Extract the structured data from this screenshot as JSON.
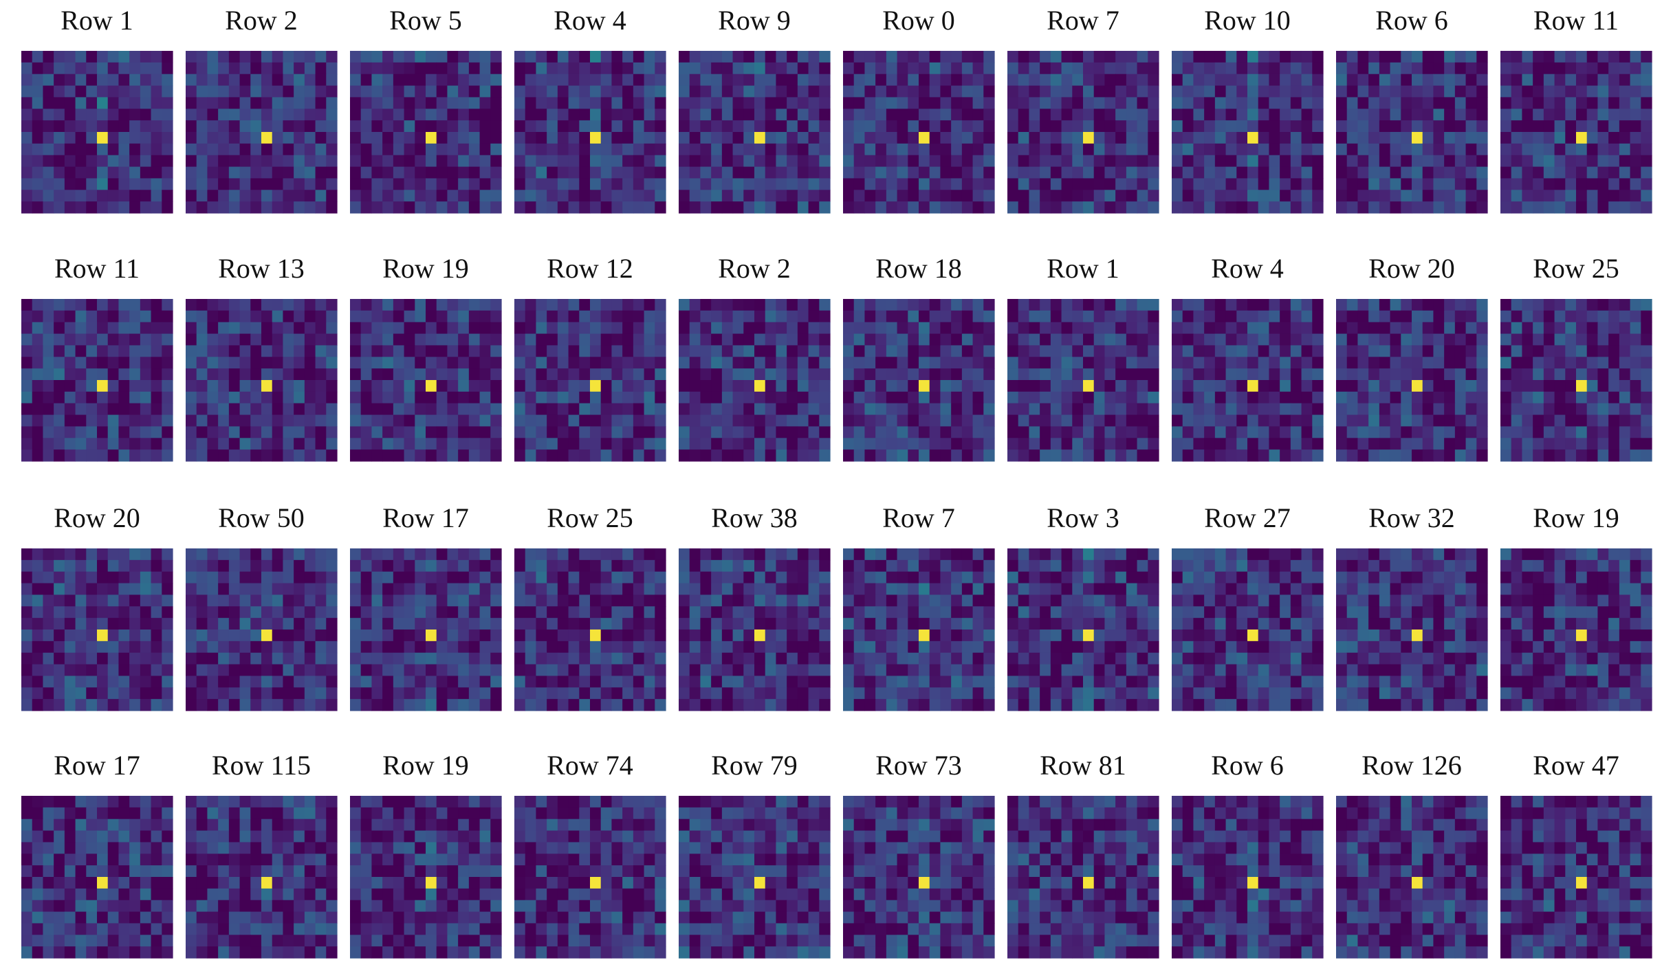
{
  "panels": [
    {
      "title": "Row 1"
    },
    {
      "title": "Row 2"
    },
    {
      "title": "Row 5"
    },
    {
      "title": "Row 4"
    },
    {
      "title": "Row 9"
    },
    {
      "title": "Row 0"
    },
    {
      "title": "Row 7"
    },
    {
      "title": "Row 10"
    },
    {
      "title": "Row 6"
    },
    {
      "title": "Row 11"
    },
    {
      "title": "Row 11"
    },
    {
      "title": "Row 13"
    },
    {
      "title": "Row 19"
    },
    {
      "title": "Row 12"
    },
    {
      "title": "Row 2"
    },
    {
      "title": "Row 18"
    },
    {
      "title": "Row 1"
    },
    {
      "title": "Row 4"
    },
    {
      "title": "Row 20"
    },
    {
      "title": "Row 25"
    },
    {
      "title": "Row 20"
    },
    {
      "title": "Row 50"
    },
    {
      "title": "Row 17"
    },
    {
      "title": "Row 25"
    },
    {
      "title": "Row 38"
    },
    {
      "title": "Row 7"
    },
    {
      "title": "Row 3"
    },
    {
      "title": "Row 27"
    },
    {
      "title": "Row 32"
    },
    {
      "title": "Row 19"
    },
    {
      "title": "Row 17"
    },
    {
      "title": "Row 115"
    },
    {
      "title": "Row 19"
    },
    {
      "title": "Row 74"
    },
    {
      "title": "Row 79"
    },
    {
      "title": "Row 73"
    },
    {
      "title": "Row 81"
    },
    {
      "title": "Row 6"
    },
    {
      "title": "Row 126"
    },
    {
      "title": "Row 47"
    }
  ]
}
